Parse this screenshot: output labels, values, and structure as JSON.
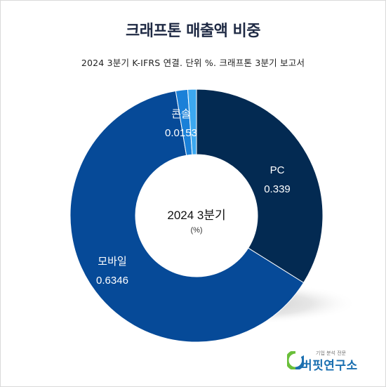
{
  "title": "크래프톤 매출액 비중",
  "subtitle": "2024 3분기 K-IFRS 연결. 단위 %. 크래프톤 3분기 보고서",
  "colors": {
    "pc": "#032a52",
    "mobile": "#064a98",
    "console": "#1a80d8",
    "other": "#3ca8f0"
  },
  "chart_data": {
    "type": "pie",
    "center_label": "2024 3분기",
    "center_unit": "(%)",
    "series": [
      {
        "name": "PC",
        "value": 0.339,
        "label": "0.339",
        "color": "#032a52"
      },
      {
        "name": "모바일",
        "value": 0.6346,
        "label": "0.6346",
        "color": "#064a98"
      },
      {
        "name": "콘솔",
        "value": 0.0153,
        "label": "0.0153",
        "color": "#1a80d8"
      },
      {
        "name": "",
        "value": 0.0111,
        "label": "",
        "color": "#3ca8f0"
      }
    ]
  },
  "logo": {
    "tagline": "기업 분석 전문",
    "name": "버핏연구소"
  }
}
